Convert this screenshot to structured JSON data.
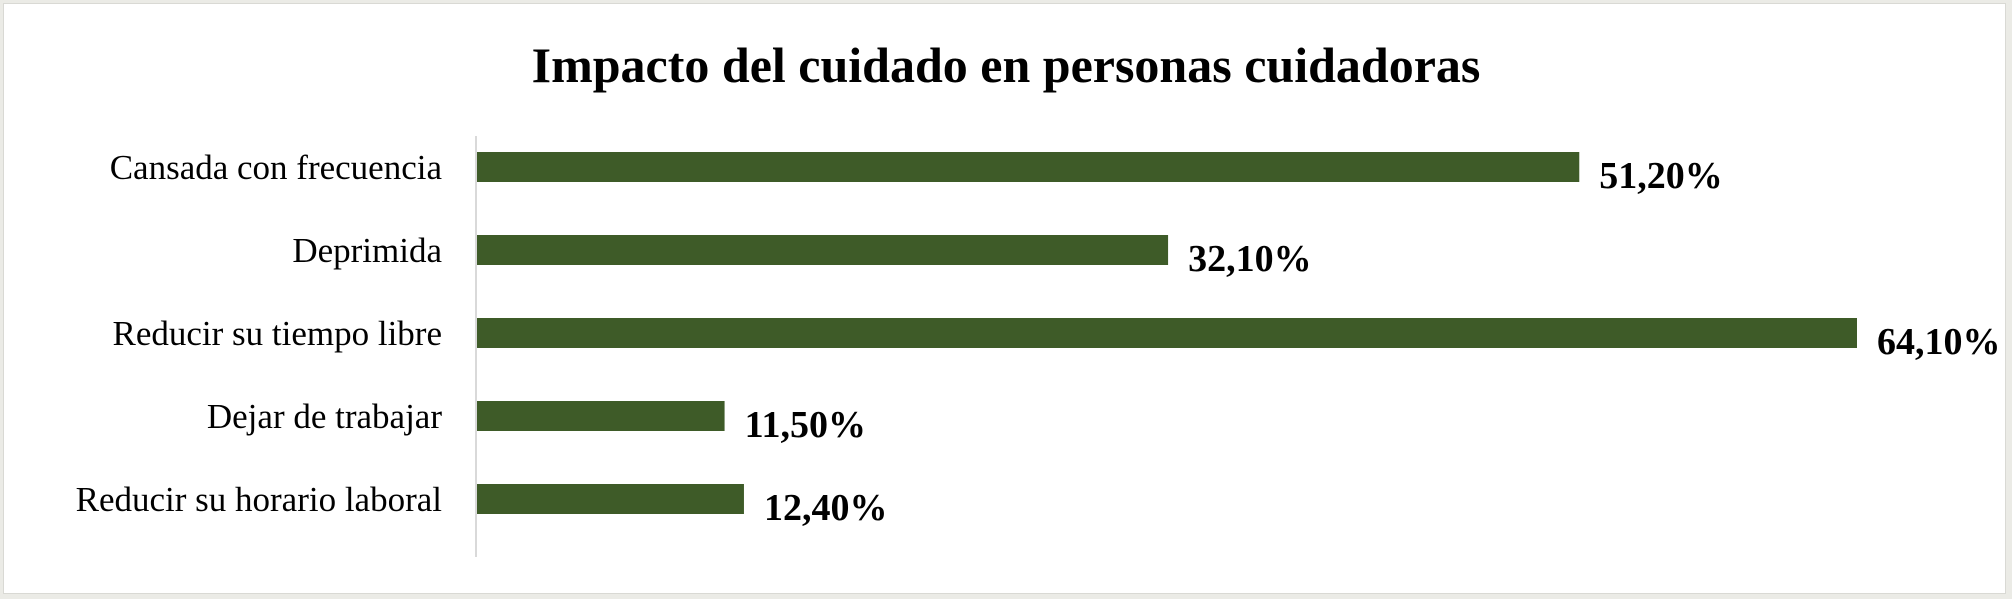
{
  "chart_data": {
    "type": "bar",
    "orientation": "horizontal",
    "title": "Impacto del cuidado en personas cuidadoras",
    "categories": [
      "Cansada con frecuencia",
      "Deprimida",
      "Reducir su tiempo libre",
      "Dejar de trabajar",
      "Reducir su horario laboral"
    ],
    "values": [
      51.2,
      32.1,
      64.1,
      11.5,
      12.4
    ],
    "value_labels": [
      "51,20%",
      "32,10%",
      "64,10%",
      "11,50%",
      "12,40%"
    ],
    "xlim": [
      0,
      64.1
    ],
    "grid": false,
    "legend": "none",
    "bar_color": "#3e5b28"
  }
}
